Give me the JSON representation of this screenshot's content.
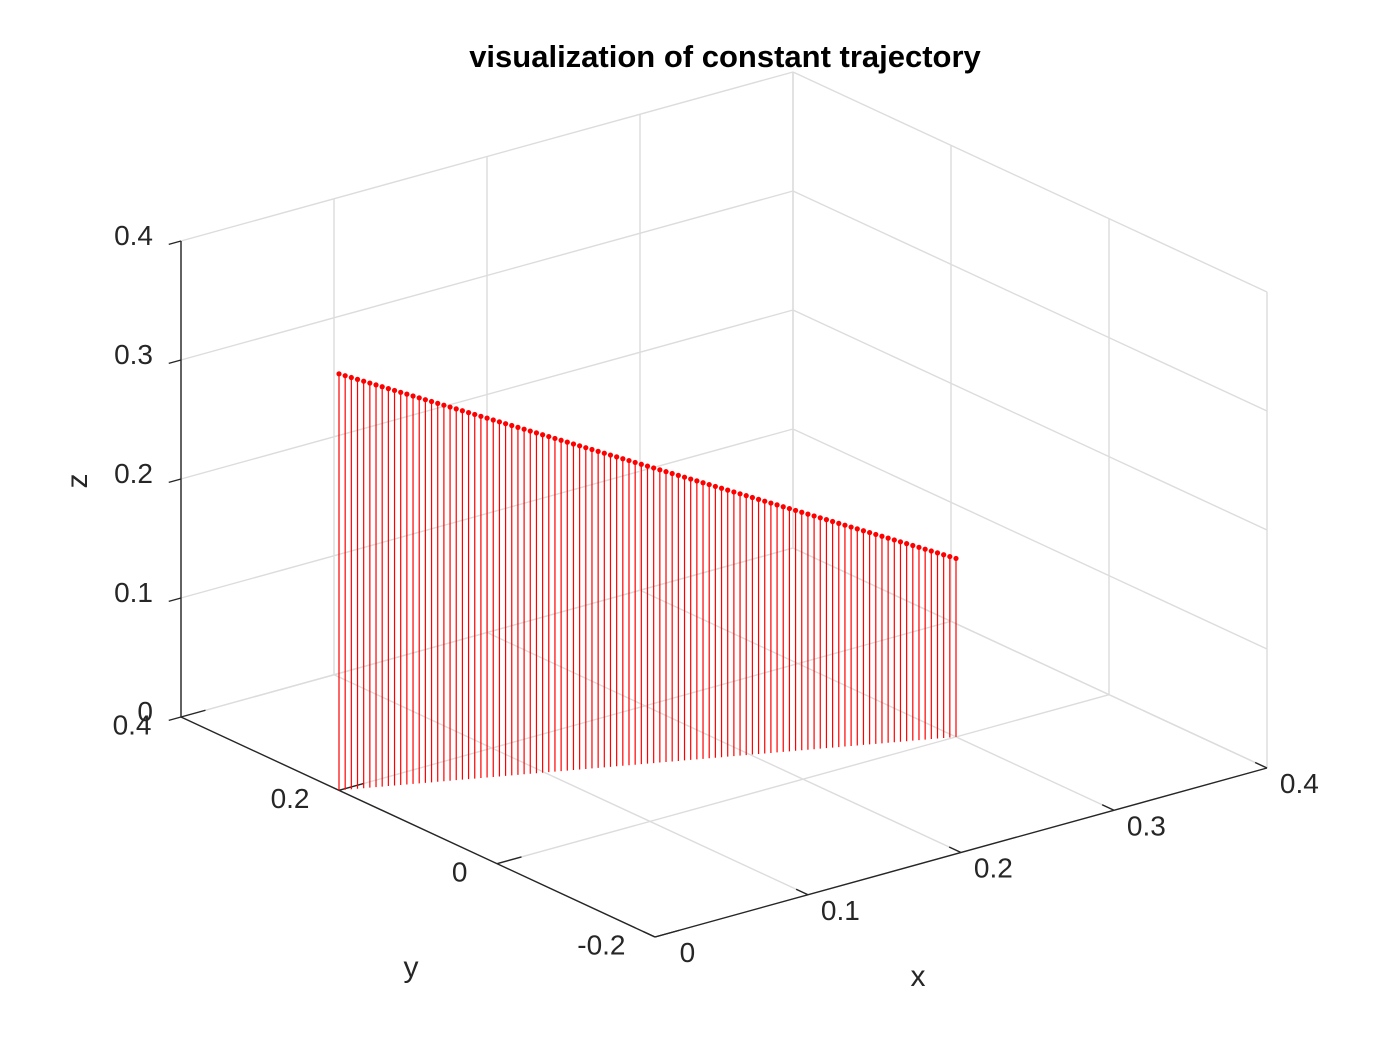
{
  "chart_data": {
    "type": "stem3",
    "title": "visualization of constant trajectory",
    "xlabel": "x",
    "ylabel": "y",
    "zlabel": "z",
    "xlim": [
      0,
      0.4
    ],
    "ylim": [
      -0.2,
      0.4
    ],
    "zlim": [
      0,
      0.4
    ],
    "xticks": [
      "0",
      "0.1",
      "0.2",
      "0.3",
      "0.4"
    ],
    "yticks": [
      "-0.2",
      "0",
      "0.2",
      "0.4"
    ],
    "zticks": [
      "0",
      "0.1",
      "0.2",
      "0.3",
      "0.4"
    ],
    "grid": true,
    "series": [
      {
        "style": "stem3",
        "color": "#ff0000",
        "num_points": 101,
        "start": {
          "x": 0.0,
          "y": 0.2,
          "z": 0.35
        },
        "end": {
          "x": 0.3,
          "y": 0.0,
          "z": 0.15
        }
      }
    ]
  }
}
